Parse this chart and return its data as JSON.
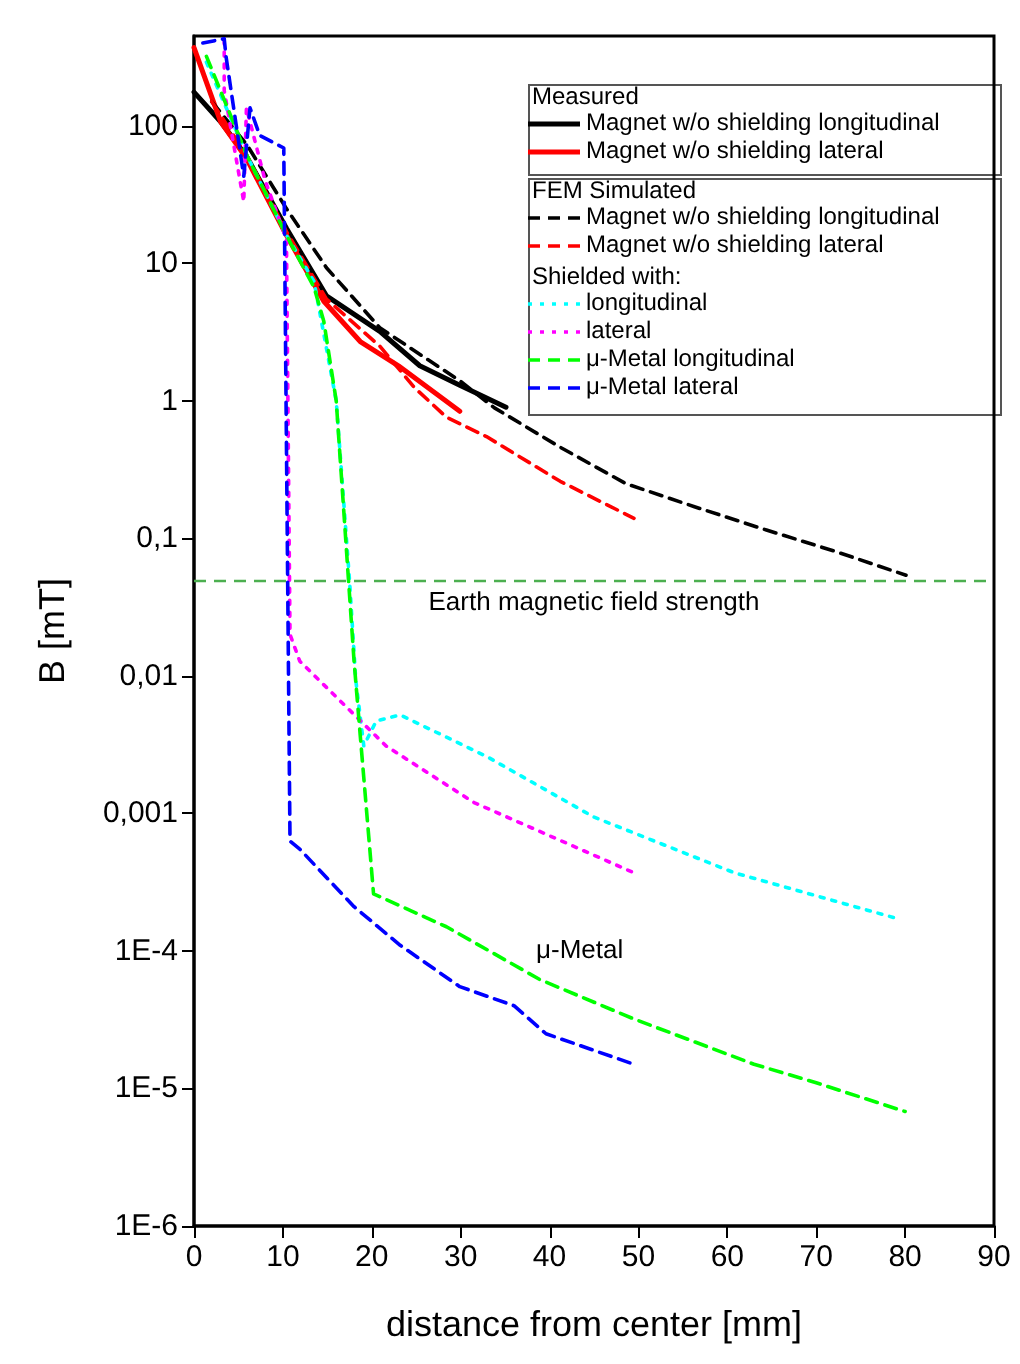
{
  "chart_data": {
    "type": "line",
    "xlabel": "distance from center [mm]",
    "ylabel": "B [mT]",
    "log": "y",
    "grid": false,
    "legend": "top right",
    "marker": "none",
    "xlim": [
      0,
      90
    ],
    "xticks": [
      0,
      10,
      20,
      30,
      40,
      50,
      60,
      70,
      80,
      90
    ],
    "ylim": [
      1e-06,
      450
    ],
    "yticks": [
      {
        "value": 1e-06,
        "label": "1E-6"
      },
      {
        "value": 1e-05,
        "label": "1E-5"
      },
      {
        "value": 0.0001,
        "label": "1E-4"
      },
      {
        "value": 0.001,
        "label": "0,001"
      },
      {
        "value": 0.01,
        "label": "0,01"
      },
      {
        "value": 0.1,
        "label": "0,1"
      },
      1,
      10,
      100
    ],
    "series": [
      {
        "name": "Magnet w/o shielding longitudinal",
        "color": "#000000",
        "line_style": "solid",
        "x": [
          0,
          3,
          5.9,
          10.4,
          14.9,
          20.9,
          25.4,
          29.9,
          35.1
        ],
        "values": [
          176,
          107,
          60,
          18,
          5.8,
          3.2,
          1.8,
          1.3,
          0.9
        ]
      },
      {
        "name": "Magnet w/o shielding lateral",
        "color": "#ff0000",
        "line_style": "solid",
        "x": [
          0,
          3,
          5.9,
          10.4,
          14.6,
          18.7,
          23,
          29.9
        ],
        "values": [
          370,
          107,
          58,
          16,
          5.3,
          2.7,
          1.8,
          0.84
        ]
      },
      {
        "name": "Magnet w/o shielding longitudinal",
        "color": "#000000",
        "line_style": "dashed",
        "x": [
          2,
          6,
          10.4,
          14.9,
          20.9,
          29.9,
          33.8,
          41.2,
          48.6,
          56.3,
          64.4,
          72,
          80.1
        ],
        "values": [
          150,
          72,
          25,
          9.3,
          3.4,
          1.4,
          0.89,
          0.46,
          0.25,
          0.17,
          0.115,
          0.081,
          0.054
        ]
      },
      {
        "name": "Magnet w/o shielding lateral",
        "color": "#ff0000",
        "line_style": "dashed",
        "x": [
          2,
          6,
          10.4,
          14.9,
          20.9,
          24.8,
          28.4,
          32.9,
          41.2,
          49.5
        ],
        "values": [
          150,
          60,
          17,
          5.5,
          2.5,
          1.25,
          0.76,
          0.55,
          0.26,
          0.14
        ]
      },
      {
        "name": "longitudinal",
        "color": "#00ffff",
        "line_style": "dotted",
        "x": [
          1.4,
          6,
          10.4,
          13.5,
          16,
          17.5,
          18.2,
          19.1,
          20.5,
          23.2,
          32.9,
          45,
          60.8,
          79.4
        ],
        "values": [
          290,
          60,
          16,
          7.4,
          1,
          0.049,
          0.0093,
          0.0031,
          0.0047,
          0.0052,
          0.0026,
          0.00094,
          0.00037,
          0.00017
        ]
      },
      {
        "name": "lateral",
        "color": "#ff00ff",
        "line_style": "dotted",
        "x": [
          3.4,
          3.4,
          5.6,
          5.9,
          8,
          10.4,
          10.8,
          11.9,
          21.6,
          31.5,
          49.5
        ],
        "values": [
          420,
          180,
          28,
          135,
          40,
          15,
          0.02,
          0.0128,
          0.0031,
          0.0012,
          0.00037
        ]
      },
      {
        "name": "μ-Metal longitudinal",
        "color": "#00ff00",
        "line_style": "dashed",
        "x": [
          1.4,
          6,
          10.4,
          13.5,
          14.6,
          16,
          18,
          18.7,
          20.2,
          28.4,
          38.9,
          49.5,
          63,
          70,
          80
        ],
        "values": [
          320,
          60,
          16,
          6.7,
          3.8,
          1,
          0.013,
          0.0037,
          0.00026,
          0.00015,
          6.2e-05,
          3.2e-05,
          1.5e-05,
          1.1e-05,
          6.8e-06
        ]
      },
      {
        "name": "μ-Metal lateral",
        "color": "#0000ff",
        "line_style": "dashed",
        "x": [
          1,
          3.4,
          3.6,
          5.6,
          6.3,
          7.4,
          10.1,
          10.8,
          11.9,
          18,
          23.2,
          29.9,
          36,
          39.6,
          49.5
        ],
        "values": [
          400,
          430,
          320,
          43,
          135,
          85,
          69,
          0.00063,
          0.00055,
          0.00021,
          0.00011,
          5.5e-05,
          4e-05,
          2.5e-05,
          1.5e-05
        ]
      }
    ],
    "ref_lines": [
      {
        "axis": "y",
        "value": 0.05,
        "label": "Earth magnetic field strength",
        "color": "#4caf50",
        "line_style": "dashed"
      }
    ],
    "annotations": [
      "Measured",
      "FEM Simulated",
      "Shielded with:",
      "μ-Metal"
    ]
  }
}
